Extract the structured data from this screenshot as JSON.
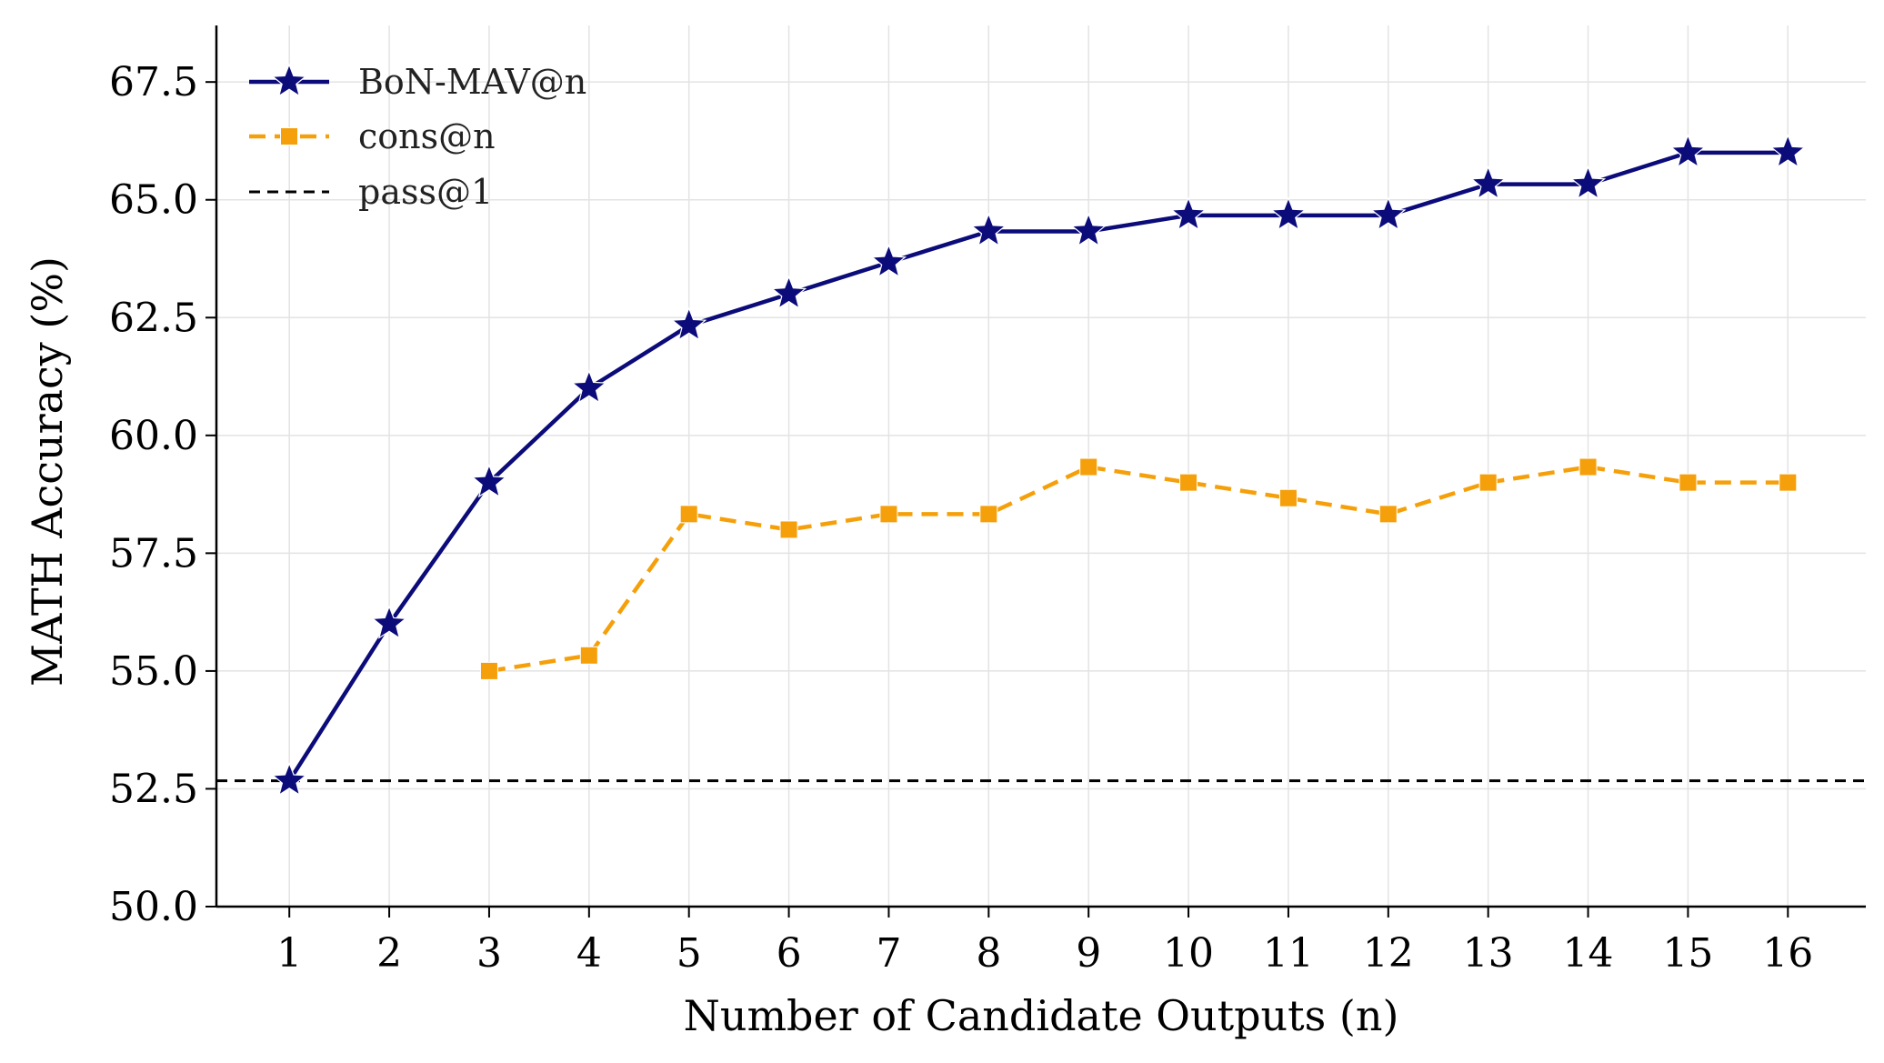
{
  "chart_data": {
    "type": "line",
    "title": "",
    "xlabel": "Number of Candidate Outputs (n)",
    "ylabel": "MATH Accuracy (%)",
    "x": [
      1,
      2,
      3,
      4,
      5,
      6,
      7,
      8,
      9,
      10,
      11,
      12,
      13,
      14,
      15,
      16
    ],
    "x_tick_labels": [
      "1",
      "2",
      "3",
      "4",
      "5",
      "6",
      "7",
      "8",
      "9",
      "10",
      "11",
      "12",
      "13",
      "14",
      "15",
      "16"
    ],
    "xlim": [
      0.27,
      16.78
    ],
    "ylim": [
      50.0,
      68.7
    ],
    "y_ticks": [
      50.0,
      52.5,
      55.0,
      57.5,
      60.0,
      62.5,
      65.0,
      67.5
    ],
    "y_tick_labels": [
      "50.0",
      "52.5",
      "55.0",
      "57.5",
      "60.0",
      "62.5",
      "65.0",
      "67.5"
    ],
    "grid": true,
    "legend_position": "top-left",
    "series": [
      {
        "name": "BoN-MAV@n",
        "color": "#0b0b7a",
        "style": "solid",
        "marker": "star",
        "x": [
          1,
          2,
          3,
          4,
          5,
          6,
          7,
          8,
          9,
          10,
          11,
          12,
          13,
          14,
          15,
          16
        ],
        "values": [
          52.67,
          56.0,
          59.0,
          61.0,
          62.33,
          63.0,
          63.67,
          64.33,
          64.33,
          64.67,
          64.67,
          64.67,
          65.33,
          65.33,
          66.0,
          66.0
        ]
      },
      {
        "name": "cons@n",
        "color": "#f5a00a",
        "style": "dashed",
        "marker": "square",
        "x": [
          3,
          4,
          5,
          6,
          7,
          8,
          9,
          10,
          11,
          12,
          13,
          14,
          15,
          16
        ],
        "values": [
          55.0,
          55.33,
          58.33,
          58.0,
          58.33,
          58.33,
          59.33,
          59.0,
          58.67,
          58.33,
          59.0,
          59.33,
          59.0,
          59.0
        ]
      },
      {
        "name": "pass@1",
        "color": "#000000",
        "style": "dashed",
        "marker": "none",
        "type": "hline",
        "value": 52.67
      }
    ]
  }
}
